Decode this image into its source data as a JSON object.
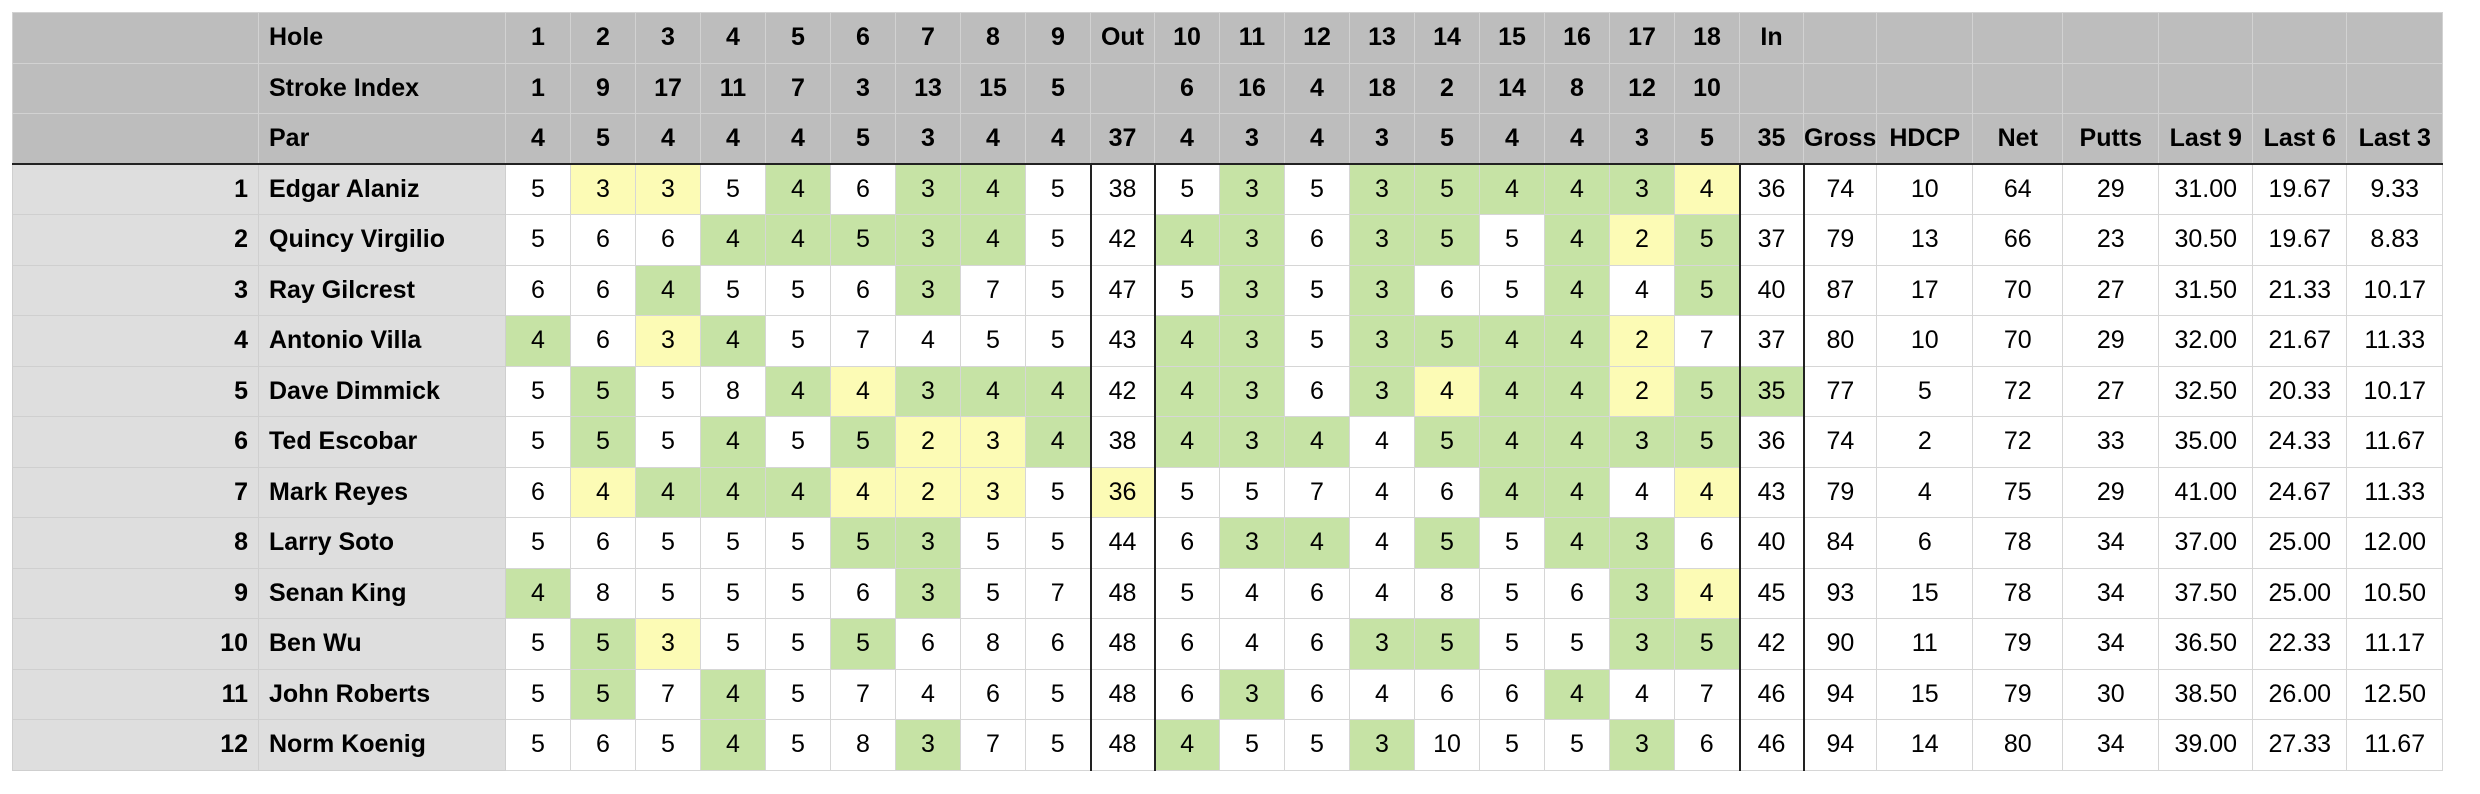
{
  "header": {
    "hole_label": "Hole",
    "si_label": "Stroke Index",
    "par_label": "Par",
    "holes_front": [
      "1",
      "2",
      "3",
      "4",
      "5",
      "6",
      "7",
      "8",
      "9"
    ],
    "out_label": "Out",
    "holes_back": [
      "10",
      "11",
      "12",
      "13",
      "14",
      "15",
      "16",
      "17",
      "18"
    ],
    "in_label": "In",
    "si_front": [
      "1",
      "9",
      "17",
      "11",
      "7",
      "3",
      "13",
      "15",
      "5"
    ],
    "si_back": [
      "6",
      "16",
      "4",
      "18",
      "2",
      "14",
      "8",
      "12",
      "10"
    ],
    "par_front": [
      "4",
      "5",
      "4",
      "4",
      "4",
      "5",
      "3",
      "4",
      "4"
    ],
    "par_out": "37",
    "par_back": [
      "4",
      "3",
      "4",
      "3",
      "5",
      "4",
      "4",
      "3",
      "5"
    ],
    "par_in": "35",
    "stat_labels": [
      "Gross",
      "HDCP",
      "Net",
      "Putts",
      "Last 9",
      "Last 6",
      "Last 3"
    ]
  },
  "colors": {
    "header_bg": "#bdbdbd",
    "name_bg": "#dedede",
    "green": "#c6e3a5",
    "yellow": "#fcfbb5"
  },
  "players": [
    {
      "num": "1",
      "name": "Edgar Alaniz",
      "front": [
        "5",
        "3",
        "3",
        "5",
        "4",
        "6",
        "3",
        "4",
        "5"
      ],
      "front_hl": [
        "",
        "y",
        "y",
        "",
        "g",
        "",
        "g",
        "g",
        ""
      ],
      "out": "38",
      "out_hl": "",
      "back": [
        "5",
        "3",
        "5",
        "3",
        "5",
        "4",
        "4",
        "3",
        "4"
      ],
      "back_hl": [
        "",
        "g",
        "",
        "g",
        "g",
        "g",
        "g",
        "g",
        "y"
      ],
      "in": "36",
      "in_hl": "",
      "stats": [
        "74",
        "10",
        "64",
        "29",
        "31.00",
        "19.67",
        "9.33"
      ]
    },
    {
      "num": "2",
      "name": "Quincy Virgilio",
      "front": [
        "5",
        "6",
        "6",
        "4",
        "4",
        "5",
        "3",
        "4",
        "5"
      ],
      "front_hl": [
        "",
        "",
        "",
        "g",
        "g",
        "g",
        "g",
        "g",
        ""
      ],
      "out": "42",
      "out_hl": "",
      "back": [
        "4",
        "3",
        "6",
        "3",
        "5",
        "5",
        "4",
        "2",
        "5"
      ],
      "back_hl": [
        "g",
        "g",
        "",
        "g",
        "g",
        "",
        "g",
        "y",
        "g"
      ],
      "in": "37",
      "in_hl": "",
      "stats": [
        "79",
        "13",
        "66",
        "23",
        "30.50",
        "19.67",
        "8.83"
      ]
    },
    {
      "num": "3",
      "name": "Ray Gilcrest",
      "front": [
        "6",
        "6",
        "4",
        "5",
        "5",
        "6",
        "3",
        "7",
        "5"
      ],
      "front_hl": [
        "",
        "",
        "g",
        "",
        "",
        "",
        "g",
        "",
        ""
      ],
      "out": "47",
      "out_hl": "",
      "back": [
        "5",
        "3",
        "5",
        "3",
        "6",
        "5",
        "4",
        "4",
        "5"
      ],
      "back_hl": [
        "",
        "g",
        "",
        "g",
        "",
        "",
        "g",
        "",
        "g"
      ],
      "in": "40",
      "in_hl": "",
      "stats": [
        "87",
        "17",
        "70",
        "27",
        "31.50",
        "21.33",
        "10.17"
      ]
    },
    {
      "num": "4",
      "name": "Antonio Villa",
      "front": [
        "4",
        "6",
        "3",
        "4",
        "5",
        "7",
        "4",
        "5",
        "5"
      ],
      "front_hl": [
        "g",
        "",
        "y",
        "g",
        "",
        "",
        "",
        "",
        ""
      ],
      "out": "43",
      "out_hl": "",
      "back": [
        "4",
        "3",
        "5",
        "3",
        "5",
        "4",
        "4",
        "2",
        "7"
      ],
      "back_hl": [
        "g",
        "g",
        "",
        "g",
        "g",
        "g",
        "g",
        "y",
        ""
      ],
      "in": "37",
      "in_hl": "",
      "stats": [
        "80",
        "10",
        "70",
        "29",
        "32.00",
        "21.67",
        "11.33"
      ]
    },
    {
      "num": "5",
      "name": "Dave Dimmick",
      "front": [
        "5",
        "5",
        "5",
        "8",
        "4",
        "4",
        "3",
        "4",
        "4"
      ],
      "front_hl": [
        "",
        "g",
        "",
        "",
        "g",
        "y",
        "g",
        "g",
        "g"
      ],
      "out": "42",
      "out_hl": "",
      "back": [
        "4",
        "3",
        "6",
        "3",
        "4",
        "4",
        "4",
        "2",
        "5"
      ],
      "back_hl": [
        "g",
        "g",
        "",
        "g",
        "y",
        "g",
        "g",
        "y",
        "g"
      ],
      "in": "35",
      "in_hl": "g",
      "stats": [
        "77",
        "5",
        "72",
        "27",
        "32.50",
        "20.33",
        "10.17"
      ]
    },
    {
      "num": "6",
      "name": "Ted Escobar",
      "front": [
        "5",
        "5",
        "5",
        "4",
        "5",
        "5",
        "2",
        "3",
        "4"
      ],
      "front_hl": [
        "",
        "g",
        "",
        "g",
        "",
        "g",
        "y",
        "y",
        "g"
      ],
      "out": "38",
      "out_hl": "",
      "back": [
        "4",
        "3",
        "4",
        "4",
        "5",
        "4",
        "4",
        "3",
        "5"
      ],
      "back_hl": [
        "g",
        "g",
        "g",
        "",
        "g",
        "g",
        "g",
        "g",
        "g"
      ],
      "in": "36",
      "in_hl": "",
      "stats": [
        "74",
        "2",
        "72",
        "33",
        "35.00",
        "24.33",
        "11.67"
      ]
    },
    {
      "num": "7",
      "name": "Mark Reyes",
      "front": [
        "6",
        "4",
        "4",
        "4",
        "4",
        "4",
        "2",
        "3",
        "5"
      ],
      "front_hl": [
        "",
        "y",
        "g",
        "g",
        "g",
        "y",
        "y",
        "y",
        ""
      ],
      "out": "36",
      "out_hl": "y",
      "back": [
        "5",
        "5",
        "7",
        "4",
        "6",
        "4",
        "4",
        "4",
        "4"
      ],
      "back_hl": [
        "",
        "",
        "",
        "",
        "",
        "g",
        "g",
        "",
        "y"
      ],
      "in": "43",
      "in_hl": "",
      "stats": [
        "79",
        "4",
        "75",
        "29",
        "41.00",
        "24.67",
        "11.33"
      ]
    },
    {
      "num": "8",
      "name": "Larry Soto",
      "front": [
        "5",
        "6",
        "5",
        "5",
        "5",
        "5",
        "3",
        "5",
        "5"
      ],
      "front_hl": [
        "",
        "",
        "",
        "",
        "",
        "g",
        "g",
        "",
        ""
      ],
      "out": "44",
      "out_hl": "",
      "back": [
        "6",
        "3",
        "4",
        "4",
        "5",
        "5",
        "4",
        "3",
        "6"
      ],
      "back_hl": [
        "",
        "g",
        "g",
        "",
        "g",
        "",
        "g",
        "g",
        ""
      ],
      "in": "40",
      "in_hl": "",
      "stats": [
        "84",
        "6",
        "78",
        "34",
        "37.00",
        "25.00",
        "12.00"
      ]
    },
    {
      "num": "9",
      "name": "Senan King",
      "front": [
        "4",
        "8",
        "5",
        "5",
        "5",
        "6",
        "3",
        "5",
        "7"
      ],
      "front_hl": [
        "g",
        "",
        "",
        "",
        "",
        "",
        "g",
        "",
        ""
      ],
      "out": "48",
      "out_hl": "",
      "back": [
        "5",
        "4",
        "6",
        "4",
        "8",
        "5",
        "6",
        "3",
        "4"
      ],
      "back_hl": [
        "",
        "",
        "",
        "",
        "",
        "",
        "",
        "g",
        "y"
      ],
      "in": "45",
      "in_hl": "",
      "stats": [
        "93",
        "15",
        "78",
        "34",
        "37.50",
        "25.00",
        "10.50"
      ]
    },
    {
      "num": "10",
      "name": "Ben Wu",
      "front": [
        "5",
        "5",
        "3",
        "5",
        "5",
        "5",
        "6",
        "8",
        "6"
      ],
      "front_hl": [
        "",
        "g",
        "y",
        "",
        "",
        "g",
        "",
        "",
        ""
      ],
      "out": "48",
      "out_hl": "",
      "back": [
        "6",
        "4",
        "6",
        "3",
        "5",
        "5",
        "5",
        "3",
        "5"
      ],
      "back_hl": [
        "",
        "",
        "",
        "g",
        "g",
        "",
        "",
        "g",
        "g"
      ],
      "in": "42",
      "in_hl": "",
      "stats": [
        "90",
        "11",
        "79",
        "34",
        "36.50",
        "22.33",
        "11.17"
      ]
    },
    {
      "num": "11",
      "name": "John Roberts",
      "front": [
        "5",
        "5",
        "7",
        "4",
        "5",
        "7",
        "4",
        "6",
        "5"
      ],
      "front_hl": [
        "",
        "g",
        "",
        "g",
        "",
        "",
        "",
        "",
        ""
      ],
      "out": "48",
      "out_hl": "",
      "back": [
        "6",
        "3",
        "6",
        "4",
        "6",
        "6",
        "4",
        "4",
        "7"
      ],
      "back_hl": [
        "",
        "g",
        "",
        "",
        "",
        "",
        "g",
        "",
        ""
      ],
      "in": "46",
      "in_hl": "",
      "stats": [
        "94",
        "15",
        "79",
        "30",
        "38.50",
        "26.00",
        "12.50"
      ]
    },
    {
      "num": "12",
      "name": "Norm Koenig",
      "front": [
        "5",
        "6",
        "5",
        "4",
        "5",
        "8",
        "3",
        "7",
        "5"
      ],
      "front_hl": [
        "",
        "",
        "",
        "g",
        "",
        "",
        "g",
        "",
        ""
      ],
      "out": "48",
      "out_hl": "",
      "back": [
        "4",
        "5",
        "5",
        "3",
        "10",
        "5",
        "5",
        "3",
        "6"
      ],
      "back_hl": [
        "g",
        "",
        "",
        "g",
        "",
        "",
        "",
        "g",
        ""
      ],
      "in": "46",
      "in_hl": "",
      "stats": [
        "94",
        "14",
        "80",
        "34",
        "39.00",
        "27.33",
        "11.67"
      ]
    }
  ]
}
